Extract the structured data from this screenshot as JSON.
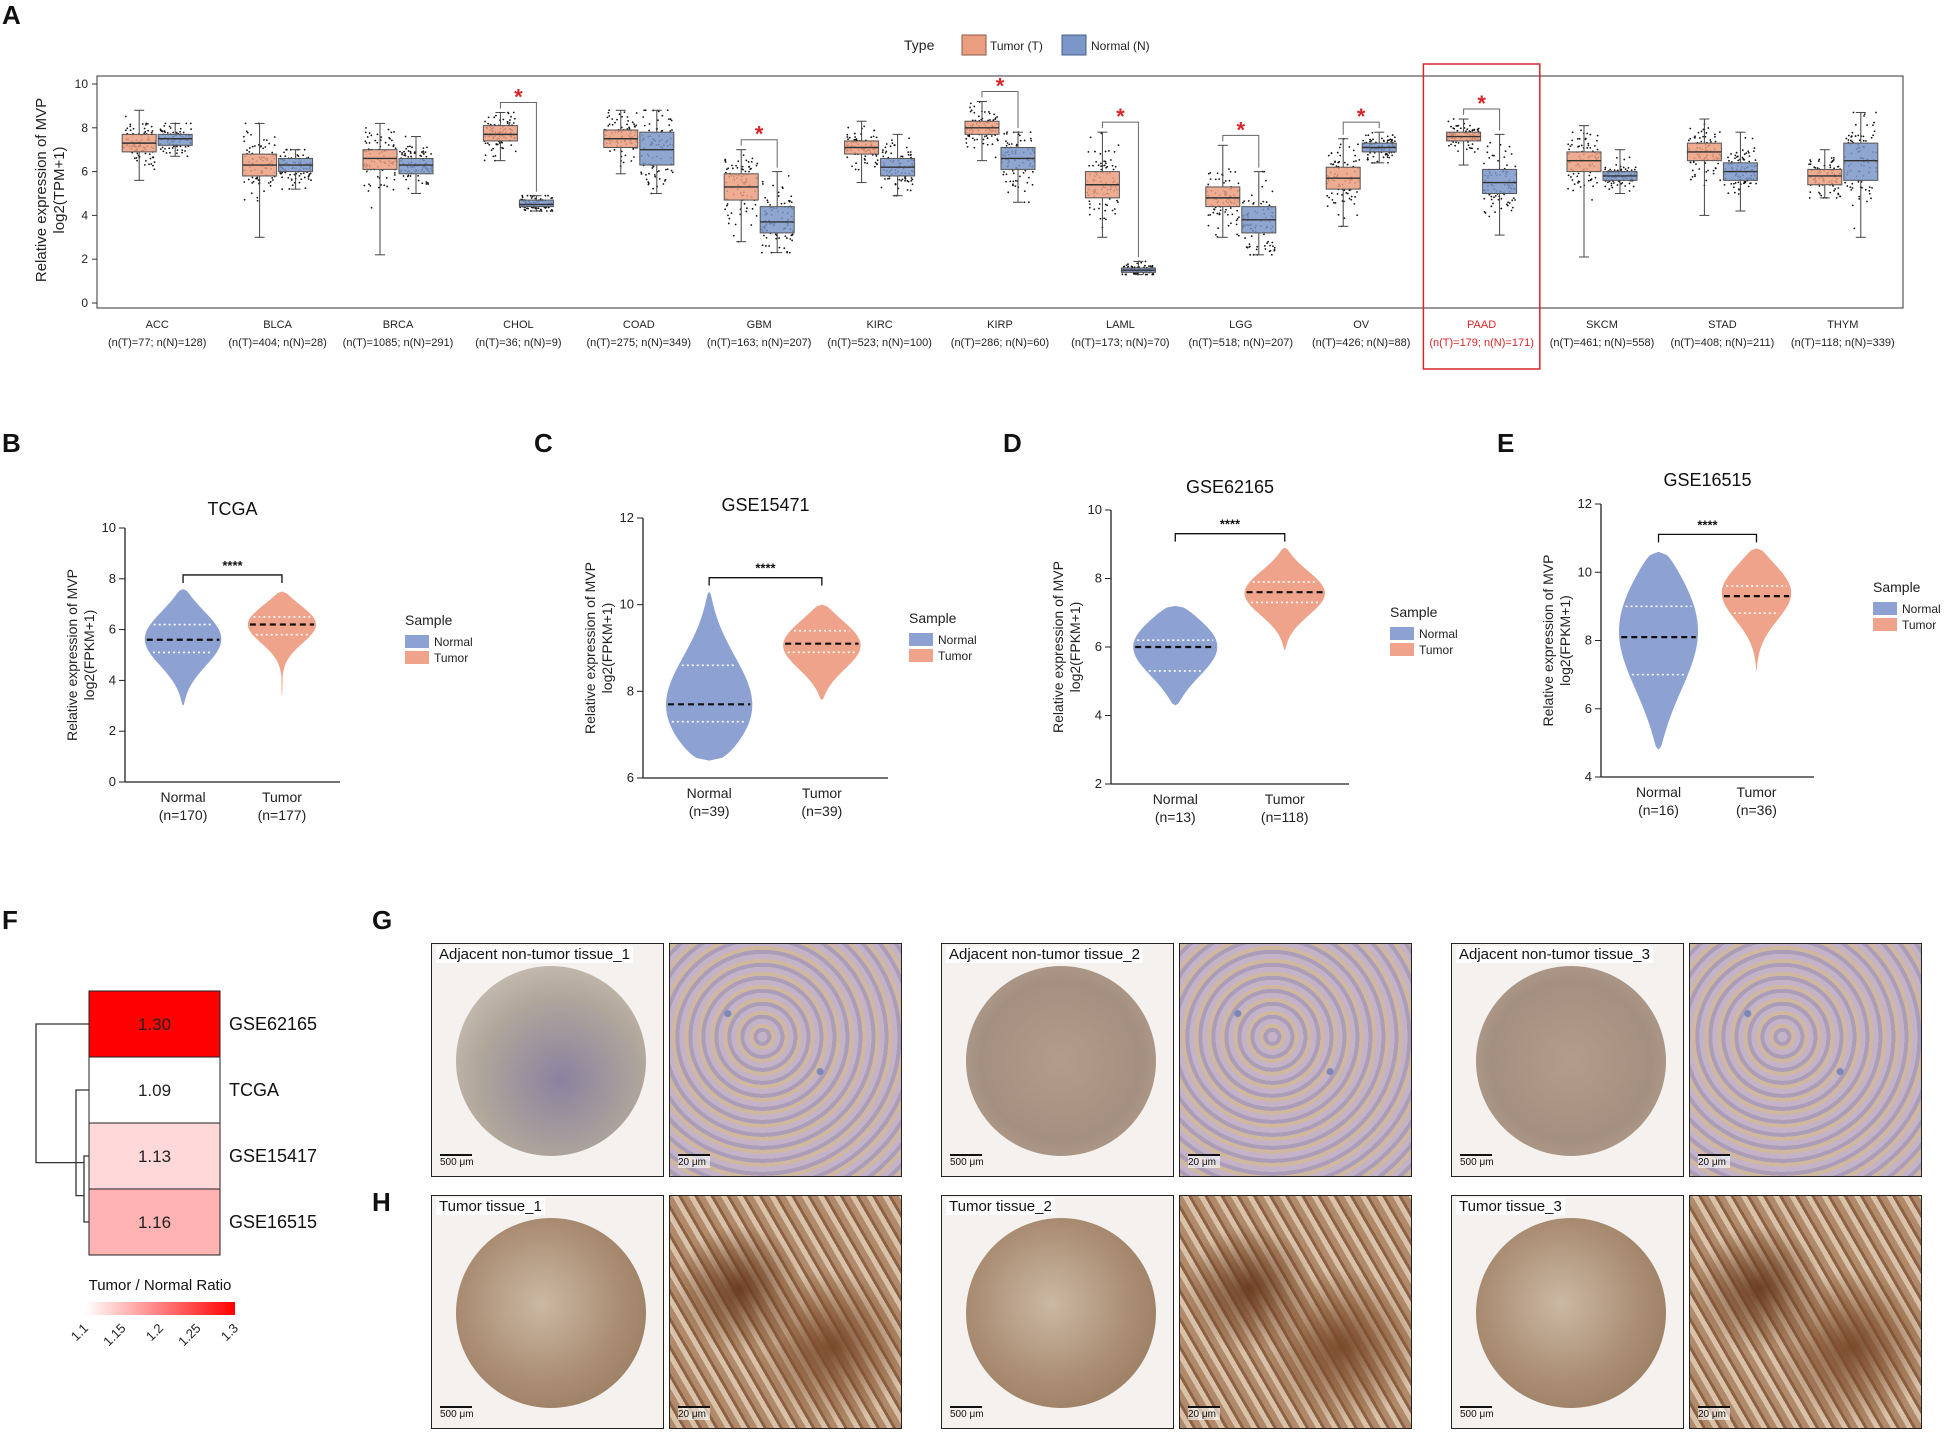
{
  "panel_labels": {
    "A": "A",
    "B": "B",
    "C": "C",
    "D": "D",
    "E": "E",
    "F": "F",
    "G": "G",
    "H": "H"
  },
  "colors": {
    "tumor": "#eb9d80",
    "normal": "#7b96c9",
    "sig": "#d62728",
    "highlight": "#d62728",
    "violet_normal": "#8da2d3",
    "violet_tumor": "#eea38a"
  },
  "chart_data": [
    {
      "id": "A",
      "type": "box",
      "ylabel_line1": "Relative expression of MVP",
      "ylabel_line2": "log2(TPM+1)",
      "ylim": [
        0,
        10
      ],
      "yticks": [
        "0",
        "2",
        "4",
        "6",
        "8",
        "10"
      ],
      "legend": {
        "title": "Type",
        "items": [
          "Tumor (T)",
          "Normal (N)"
        ]
      },
      "highlight_index": 11,
      "sig_marker": "*",
      "groups": [
        {
          "name": "ACC",
          "counts": "(n(T)=77; n(N)=128)",
          "T": {
            "min": 5.6,
            "q1": 6.9,
            "med": 7.3,
            "q3": 7.7,
            "max": 8.8
          },
          "N": {
            "min": 6.7,
            "q1": 7.2,
            "med": 7.5,
            "q3": 7.7,
            "max": 8.2
          },
          "sig": false
        },
        {
          "name": "BLCA",
          "counts": "(n(T)=404; n(N)=28)",
          "T": {
            "min": 3.0,
            "q1": 5.8,
            "med": 6.3,
            "q3": 6.8,
            "max": 8.2
          },
          "N": {
            "min": 5.2,
            "q1": 6.0,
            "med": 6.3,
            "q3": 6.6,
            "max": 7.0
          },
          "sig": false
        },
        {
          "name": "BRCA",
          "counts": "(n(T)=1085; n(N)=291)",
          "T": {
            "min": 2.2,
            "q1": 6.1,
            "med": 6.6,
            "q3": 7.0,
            "max": 8.2
          },
          "N": {
            "min": 5.0,
            "q1": 5.9,
            "med": 6.3,
            "q3": 6.6,
            "max": 7.6
          },
          "sig": false
        },
        {
          "name": "CHOL",
          "counts": "(n(T)=36; n(N)=9)",
          "T": {
            "min": 6.5,
            "q1": 7.4,
            "med": 7.7,
            "q3": 8.1,
            "max": 8.7
          },
          "N": {
            "min": 4.2,
            "q1": 4.4,
            "med": 4.5,
            "q3": 4.7,
            "max": 4.9
          },
          "sig": true
        },
        {
          "name": "COAD",
          "counts": "(n(T)=275; n(N)=349)",
          "T": {
            "min": 5.9,
            "q1": 7.1,
            "med": 7.5,
            "q3": 7.9,
            "max": 8.8
          },
          "N": {
            "min": 5.0,
            "q1": 6.3,
            "med": 7.0,
            "q3": 7.8,
            "max": 8.8
          },
          "sig": false
        },
        {
          "name": "GBM",
          "counts": "(n(T)=163; n(N)=207)",
          "T": {
            "min": 2.8,
            "q1": 4.7,
            "med": 5.3,
            "q3": 5.9,
            "max": 7.0
          },
          "N": {
            "min": 2.3,
            "q1": 3.2,
            "med": 3.7,
            "q3": 4.4,
            "max": 6.0
          },
          "sig": true
        },
        {
          "name": "KIRC",
          "counts": "(n(T)=523; n(N)=100)",
          "T": {
            "min": 5.5,
            "q1": 6.8,
            "med": 7.1,
            "q3": 7.4,
            "max": 8.3
          },
          "N": {
            "min": 4.9,
            "q1": 5.8,
            "med": 6.2,
            "q3": 6.6,
            "max": 7.7
          },
          "sig": false
        },
        {
          "name": "KIRP",
          "counts": "(n(T)=286; n(N)=60)",
          "T": {
            "min": 6.5,
            "q1": 7.7,
            "med": 8.0,
            "q3": 8.3,
            "max": 9.2
          },
          "N": {
            "min": 4.6,
            "q1": 6.1,
            "med": 6.6,
            "q3": 7.1,
            "max": 7.8
          },
          "sig": true
        },
        {
          "name": "LAML",
          "counts": "(n(T)=173; n(N)=70)",
          "T": {
            "min": 3.0,
            "q1": 4.8,
            "med": 5.4,
            "q3": 6.0,
            "max": 7.8
          },
          "N": {
            "min": 1.3,
            "q1": 1.4,
            "med": 1.5,
            "q3": 1.6,
            "max": 1.9
          },
          "sig": true
        },
        {
          "name": "LGG",
          "counts": "(n(T)=518; n(N)=207)",
          "T": {
            "min": 3.0,
            "q1": 4.4,
            "med": 4.8,
            "q3": 5.3,
            "max": 7.2
          },
          "N": {
            "min": 2.2,
            "q1": 3.2,
            "med": 3.8,
            "q3": 4.4,
            "max": 6.0
          },
          "sig": true
        },
        {
          "name": "OV",
          "counts": "(n(T)=426; n(N)=88)",
          "T": {
            "min": 3.5,
            "q1": 5.2,
            "med": 5.7,
            "q3": 6.2,
            "max": 7.5
          },
          "N": {
            "min": 6.4,
            "q1": 6.9,
            "med": 7.1,
            "q3": 7.3,
            "max": 7.8
          },
          "sig": true
        },
        {
          "name": "PAAD",
          "counts": "(n(T)=179; n(N)=171)",
          "T": {
            "min": 6.3,
            "q1": 7.4,
            "med": 7.6,
            "q3": 7.8,
            "max": 8.4
          },
          "N": {
            "min": 3.1,
            "q1": 5.0,
            "med": 5.5,
            "q3": 6.1,
            "max": 7.7
          },
          "sig": true
        },
        {
          "name": "SKCM",
          "counts": "(n(T)=461; n(N)=558)",
          "T": {
            "min": 2.1,
            "q1": 6.0,
            "med": 6.5,
            "q3": 6.9,
            "max": 8.1
          },
          "N": {
            "min": 5.0,
            "q1": 5.6,
            "med": 5.8,
            "q3": 6.0,
            "max": 7.0
          },
          "sig": false
        },
        {
          "name": "STAD",
          "counts": "(n(T)=408; n(N)=211)",
          "T": {
            "min": 4.0,
            "q1": 6.5,
            "med": 6.9,
            "q3": 7.3,
            "max": 8.4
          },
          "N": {
            "min": 4.2,
            "q1": 5.6,
            "med": 6.0,
            "q3": 6.4,
            "max": 7.8
          },
          "sig": false
        },
        {
          "name": "THYM",
          "counts": "(n(T)=118; n(N)=339)",
          "T": {
            "min": 4.8,
            "q1": 5.4,
            "med": 5.8,
            "q3": 6.1,
            "max": 7.0
          },
          "N": {
            "min": 3.0,
            "q1": 5.6,
            "med": 6.5,
            "q3": 7.3,
            "max": 8.7
          },
          "sig": false
        }
      ]
    },
    {
      "id": "B",
      "type": "violin",
      "title": "TCGA",
      "ylabel_line1": "Relative expression of MVP",
      "ylabel_line2": "log2(FPKM+1)",
      "ylim": [
        0,
        10
      ],
      "yticks": [
        "0",
        "2",
        "4",
        "6",
        "8",
        "10"
      ],
      "sig": "****",
      "legend": {
        "title": "Sample",
        "items": [
          "Normal",
          "Tumor"
        ]
      },
      "groups": [
        {
          "name": "Normal",
          "n": "(n=170)",
          "min": 3.0,
          "max": 7.6,
          "q1": 5.1,
          "med": 5.6,
          "q3": 6.2,
          "mode": 5.7,
          "width": 0.9
        },
        {
          "name": "Tumor",
          "n": "(n=177)",
          "min": 3.4,
          "max": 7.5,
          "q1": 5.8,
          "med": 6.2,
          "q3": 6.5,
          "mode": 6.3,
          "width": 0.85
        }
      ]
    },
    {
      "id": "C",
      "type": "violin",
      "title": "GSE15471",
      "ylabel_line1": "Relative expression of MVP",
      "ylabel_line2": "log2(FPKM+1)",
      "ylim": [
        6,
        12
      ],
      "yticks": [
        "6",
        "8",
        "10",
        "12"
      ],
      "sig": "****",
      "legend": {
        "title": "Sample",
        "items": [
          "Normal",
          "Tumor"
        ]
      },
      "groups": [
        {
          "name": "Normal",
          "n": "(n=39)",
          "min": 6.4,
          "max": 10.3,
          "q1": 7.3,
          "med": 7.7,
          "q3": 8.6,
          "mode": 7.4,
          "width": 0.95
        },
        {
          "name": "Tumor",
          "n": "(n=39)",
          "min": 7.8,
          "max": 10.0,
          "q1": 8.9,
          "med": 9.1,
          "q3": 9.4,
          "mode": 9.1,
          "width": 0.8
        }
      ]
    },
    {
      "id": "D",
      "type": "violin",
      "title": "GSE62165",
      "ylabel_line1": "Relative expression of MVP",
      "ylabel_line2": "log2(FPKM+1)",
      "ylim": [
        2,
        10
      ],
      "yticks": [
        "2",
        "4",
        "6",
        "8",
        "10"
      ],
      "sig": "****",
      "legend": {
        "title": "Sample",
        "items": [
          "Normal",
          "Tumor"
        ]
      },
      "groups": [
        {
          "name": "Normal",
          "n": "(n=13)",
          "min": 4.3,
          "max": 7.2,
          "q1": 5.3,
          "med": 6.0,
          "q3": 6.2,
          "mode": 6.1,
          "width": 0.9
        },
        {
          "name": "Tumor",
          "n": "(n=118)",
          "min": 5.9,
          "max": 8.9,
          "q1": 7.3,
          "med": 7.6,
          "q3": 7.9,
          "mode": 7.6,
          "width": 0.85
        }
      ]
    },
    {
      "id": "E",
      "type": "violin",
      "title": "GSE16515",
      "ylabel_line1": "Relative expression of MVP",
      "ylabel_line2": "log2(FPKM+1)",
      "ylim": [
        4,
        12
      ],
      "yticks": [
        "4",
        "6",
        "8",
        "10",
        "12"
      ],
      "sig": "****",
      "legend": {
        "title": "Sample",
        "items": [
          "Normal",
          "Tumor"
        ]
      },
      "groups": [
        {
          "name": "Normal",
          "n": "(n=16)",
          "min": 4.8,
          "max": 10.6,
          "q1": 7.0,
          "med": 8.1,
          "q3": 9.0,
          "mode": 8.5,
          "width": 0.95
        },
        {
          "name": "Tumor",
          "n": "(n=36)",
          "min": 7.1,
          "max": 10.7,
          "q1": 8.8,
          "med": 9.3,
          "q3": 9.6,
          "mode": 9.5,
          "width": 0.85
        }
      ]
    },
    {
      "id": "F",
      "type": "heatmap",
      "rows": [
        {
          "dataset": "GSE62165",
          "value": 1.3,
          "label": "1.30"
        },
        {
          "dataset": "TCGA",
          "value": 1.09,
          "label": "1.09"
        },
        {
          "dataset": "GSE15417",
          "value": 1.13,
          "label": "1.13"
        },
        {
          "dataset": "GSE16515",
          "value": 1.16,
          "label": "1.16"
        }
      ],
      "colorbar": {
        "title": "Tumor / Normal Ratio",
        "ticks": [
          "1.1",
          "1.15",
          "1.2",
          "1.25",
          "1.3"
        ],
        "range": [
          1.1,
          1.3
        ]
      }
    }
  ],
  "ihc": {
    "adjacent": [
      {
        "caption": "Adjacent non-tumor tissue_1",
        "scale_low": "500 μm",
        "scale_high": "20 μm"
      },
      {
        "caption": "Adjacent non-tumor tissue_2",
        "scale_low": "500 μm",
        "scale_high": "20 μm"
      },
      {
        "caption": "Adjacent non-tumor tissue_3",
        "scale_low": "500 μm",
        "scale_high": "20 μm"
      }
    ],
    "tumor": [
      {
        "caption": "Tumor tissue_1",
        "scale_low": "500 μm",
        "scale_high": "20 μm"
      },
      {
        "caption": "Tumor tissue_2",
        "scale_low": "500 μm",
        "scale_high": "20 μm"
      },
      {
        "caption": "Tumor tissue_3",
        "scale_low": "500 μm",
        "scale_high": "20 μm"
      }
    ]
  }
}
